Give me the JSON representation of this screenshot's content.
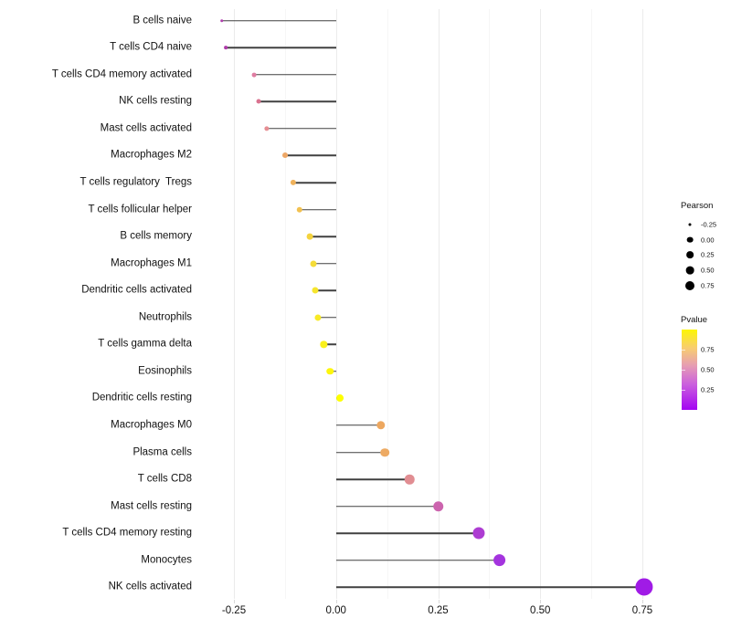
{
  "chart_data": {
    "type": "scatter",
    "variant": "lollipop",
    "title": "",
    "xlabel": "",
    "ylabel": "",
    "xlim": [
      -0.33,
      0.82
    ],
    "grid": true,
    "x_axis": {
      "tick_values": [
        -0.25,
        0.0,
        0.25,
        0.5,
        0.75
      ],
      "tick_labels": [
        "-0.25",
        "0.00",
        "0.25",
        "0.50",
        "0.75"
      ],
      "minor_tick_values": [
        -0.125,
        0.125,
        0.375,
        0.625
      ]
    },
    "points": [
      {
        "label": "B cells naive",
        "pearson": -0.28,
        "color": "#b03fae"
      },
      {
        "label": "T cells CD4 naive",
        "pearson": -0.27,
        "color": "#ad3ba8"
      },
      {
        "label": "T cells CD4 memory activated",
        "pearson": -0.2,
        "color": "#df7da2"
      },
      {
        "label": "NK cells resting",
        "pearson": -0.19,
        "color": "#d9728f"
      },
      {
        "label": "Mast cells activated",
        "pearson": -0.17,
        "color": "#e68e93"
      },
      {
        "label": "Macrophages M2",
        "pearson": -0.125,
        "color": "#eda766"
      },
      {
        "label": "T cells regulatory  Tregs",
        "pearson": -0.105,
        "color": "#f0b25b"
      },
      {
        "label": "T cells follicular helper",
        "pearson": -0.09,
        "color": "#f2c150"
      },
      {
        "label": "B cells memory",
        "pearson": -0.065,
        "color": "#f4d33e"
      },
      {
        "label": "Macrophages M1",
        "pearson": -0.055,
        "color": "#f5dc38"
      },
      {
        "label": "Dendritic cells activated",
        "pearson": -0.05,
        "color": "#f6e52e"
      },
      {
        "label": "Neutrophils",
        "pearson": -0.045,
        "color": "#f8ea26"
      },
      {
        "label": "T cells gamma delta",
        "pearson": -0.03,
        "color": "#faf01b"
      },
      {
        "label": "Eosinophils",
        "pearson": -0.015,
        "color": "#fdf60d"
      },
      {
        "label": "Dendritic cells resting",
        "pearson": 0.01,
        "color": "#feff00"
      },
      {
        "label": "Macrophages M0",
        "pearson": 0.11,
        "color": "#eda75f"
      },
      {
        "label": "Plasma cells",
        "pearson": 0.12,
        "color": "#edaa63"
      },
      {
        "label": "T cells CD8",
        "pearson": 0.18,
        "color": "#e18d92"
      },
      {
        "label": "Mast cells resting",
        "pearson": 0.25,
        "color": "#cc64ae"
      },
      {
        "label": "T cells CD4 memory resting",
        "pearson": 0.35,
        "color": "#ad3cd2"
      },
      {
        "label": "Monocytes",
        "pearson": 0.4,
        "color": "#a434de"
      },
      {
        "label": "NK cells activated",
        "pearson": 0.755,
        "color": "#a01be6"
      }
    ],
    "legend_pearson": {
      "title": "Pearson",
      "items": [
        {
          "label": "-0.25",
          "diameter": 3.0
        },
        {
          "label": "0.00",
          "diameter": 6.7
        },
        {
          "label": "0.25",
          "diameter": 7.7
        },
        {
          "label": "0.50",
          "diameter": 8.7
        },
        {
          "label": "0.75",
          "diameter": 10.0
        }
      ],
      "legend_position": "right"
    },
    "legend_pvalue": {
      "title": "Pvalue",
      "range": [
        0,
        1
      ],
      "tick_values": [
        0.75,
        0.5,
        0.25
      ],
      "tick_labels": [
        "0.75",
        "0.50",
        "0.25"
      ],
      "gradient_colors": [
        "#fcf603",
        "#f8cd70",
        "#e69db3",
        "#cb60dd",
        "#a304f2"
      ],
      "gradient_positions": [
        0,
        0.23,
        0.45,
        0.68,
        1
      ],
      "legend_position": "right"
    },
    "style": {
      "stick_color": "#404040",
      "gridline_major_color": "#ebebeb",
      "gridline_minor_color": "#f6f6f6",
      "axis_text_color": "#111111",
      "background": "#ffffff"
    }
  }
}
